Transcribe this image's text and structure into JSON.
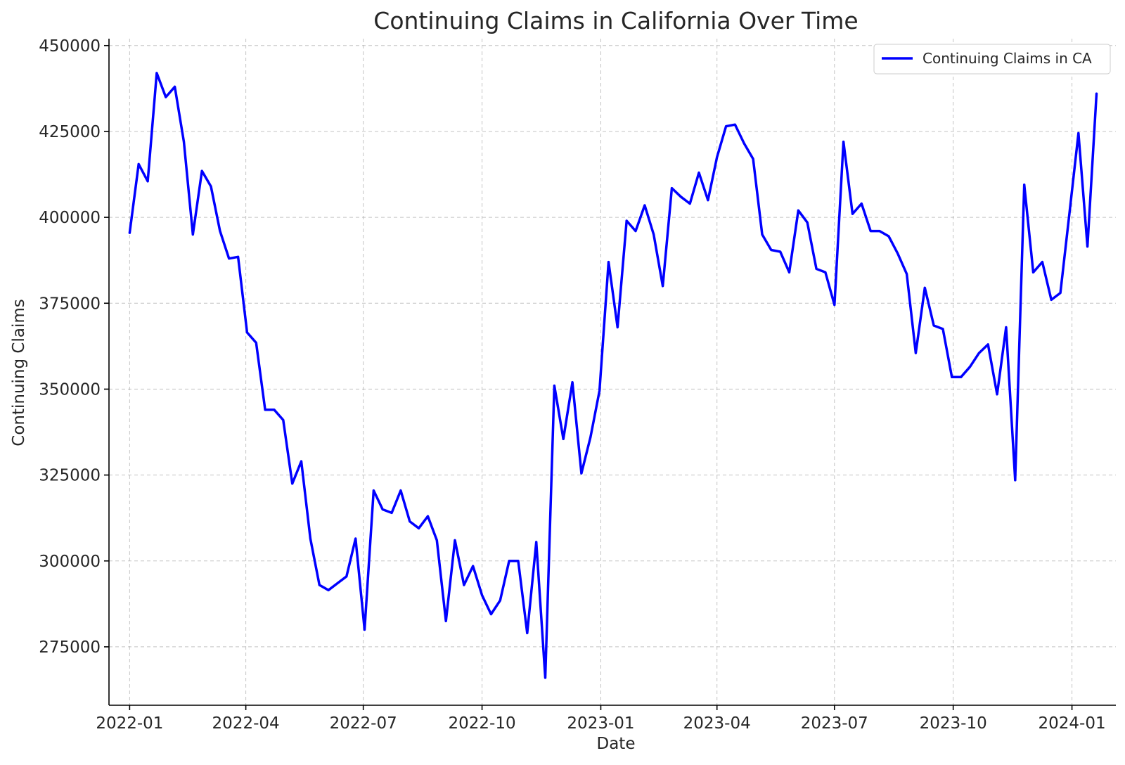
{
  "chart_data": {
    "type": "line",
    "title": "Continuing Claims in California Over Time",
    "xlabel": "Date",
    "ylabel": "Continuing Claims",
    "x_ticks": [
      "2022-01",
      "2022-04",
      "2022-07",
      "2022-10",
      "2023-01",
      "2023-04",
      "2023-07",
      "2023-10",
      "2024-01"
    ],
    "y_ticks": [
      "275000",
      "300000",
      "325000",
      "350000",
      "375000",
      "400000",
      "425000",
      "450000"
    ],
    "ylim": [
      258000,
      452000
    ],
    "xlim": [
      "2021-12-16",
      "2024-02-04"
    ],
    "grid": true,
    "legend_position": "top-right",
    "series": [
      {
        "name": "Continuing Claims in CA",
        "color": "#0000ff",
        "x": [
          "2022-01-01",
          "2022-01-08",
          "2022-01-15",
          "2022-01-22",
          "2022-01-29",
          "2022-02-05",
          "2022-02-12",
          "2022-02-19",
          "2022-02-26",
          "2022-03-05",
          "2022-03-12",
          "2022-03-19",
          "2022-03-26",
          "2022-04-02",
          "2022-04-09",
          "2022-04-16",
          "2022-04-23",
          "2022-04-30",
          "2022-05-07",
          "2022-05-14",
          "2022-05-21",
          "2022-05-28",
          "2022-06-04",
          "2022-06-11",
          "2022-06-18",
          "2022-06-25",
          "2022-07-02",
          "2022-07-09",
          "2022-07-16",
          "2022-07-23",
          "2022-07-30",
          "2022-08-06",
          "2022-08-13",
          "2022-08-20",
          "2022-08-27",
          "2022-09-03",
          "2022-09-10",
          "2022-09-17",
          "2022-09-24",
          "2022-10-01",
          "2022-10-08",
          "2022-10-15",
          "2022-10-22",
          "2022-10-29",
          "2022-11-05",
          "2022-11-12",
          "2022-11-19",
          "2022-11-26",
          "2022-12-03",
          "2022-12-10",
          "2022-12-17",
          "2022-12-24",
          "2022-12-31",
          "2023-01-07",
          "2023-01-14",
          "2023-01-21",
          "2023-01-28",
          "2023-02-04",
          "2023-02-11",
          "2023-02-18",
          "2023-02-25",
          "2023-03-04",
          "2023-03-11",
          "2023-03-18",
          "2023-03-25",
          "2023-04-01",
          "2023-04-08",
          "2023-04-15",
          "2023-04-22",
          "2023-04-29",
          "2023-05-06",
          "2023-05-13",
          "2023-05-20",
          "2023-05-27",
          "2023-06-03",
          "2023-06-10",
          "2023-06-17",
          "2023-06-24",
          "2023-07-01",
          "2023-07-08",
          "2023-07-15",
          "2023-07-22",
          "2023-07-29",
          "2023-08-05",
          "2023-08-12",
          "2023-08-19",
          "2023-08-26",
          "2023-09-02",
          "2023-09-09",
          "2023-09-16",
          "2023-09-23",
          "2023-09-30",
          "2023-10-07",
          "2023-10-14",
          "2023-10-21",
          "2023-10-28",
          "2023-11-04",
          "2023-11-11",
          "2023-11-18",
          "2023-11-25",
          "2023-12-02",
          "2023-12-09",
          "2023-12-16",
          "2023-12-23",
          "2023-12-30",
          "2024-01-06",
          "2024-01-13",
          "2024-01-20"
        ],
        "values": [
          395500,
          415500,
          410500,
          442000,
          435000,
          438000,
          422000,
          395000,
          413500,
          409000,
          396000,
          388000,
          388500,
          366500,
          363500,
          344000,
          344000,
          341000,
          322500,
          329000,
          306500,
          293000,
          291500,
          293500,
          295500,
          306500,
          280000,
          320500,
          315000,
          314000,
          320500,
          311500,
          309500,
          313000,
          306000,
          282500,
          306000,
          293000,
          298500,
          290000,
          284500,
          288500,
          300000,
          300000,
          279000,
          305500,
          266000,
          351000,
          335500,
          352000,
          325500,
          336000,
          349500,
          387000,
          368000,
          399000,
          396000,
          403500,
          395000,
          380000,
          408500,
          406000,
          404000,
          413000,
          405000,
          417500,
          426500,
          427000,
          421500,
          417000,
          395000,
          390500,
          390000,
          384000,
          402000,
          398500,
          385000,
          384000,
          374500,
          422000,
          401000,
          404000,
          396000,
          396000,
          394500,
          389500,
          383500,
          360500,
          379500,
          368500,
          367500,
          353500,
          353500,
          356500,
          360500,
          363000,
          348500,
          368000,
          323500,
          409500,
          384000,
          387000,
          376000,
          378000,
          401000,
          424500,
          391500,
          436000
        ]
      }
    ]
  }
}
